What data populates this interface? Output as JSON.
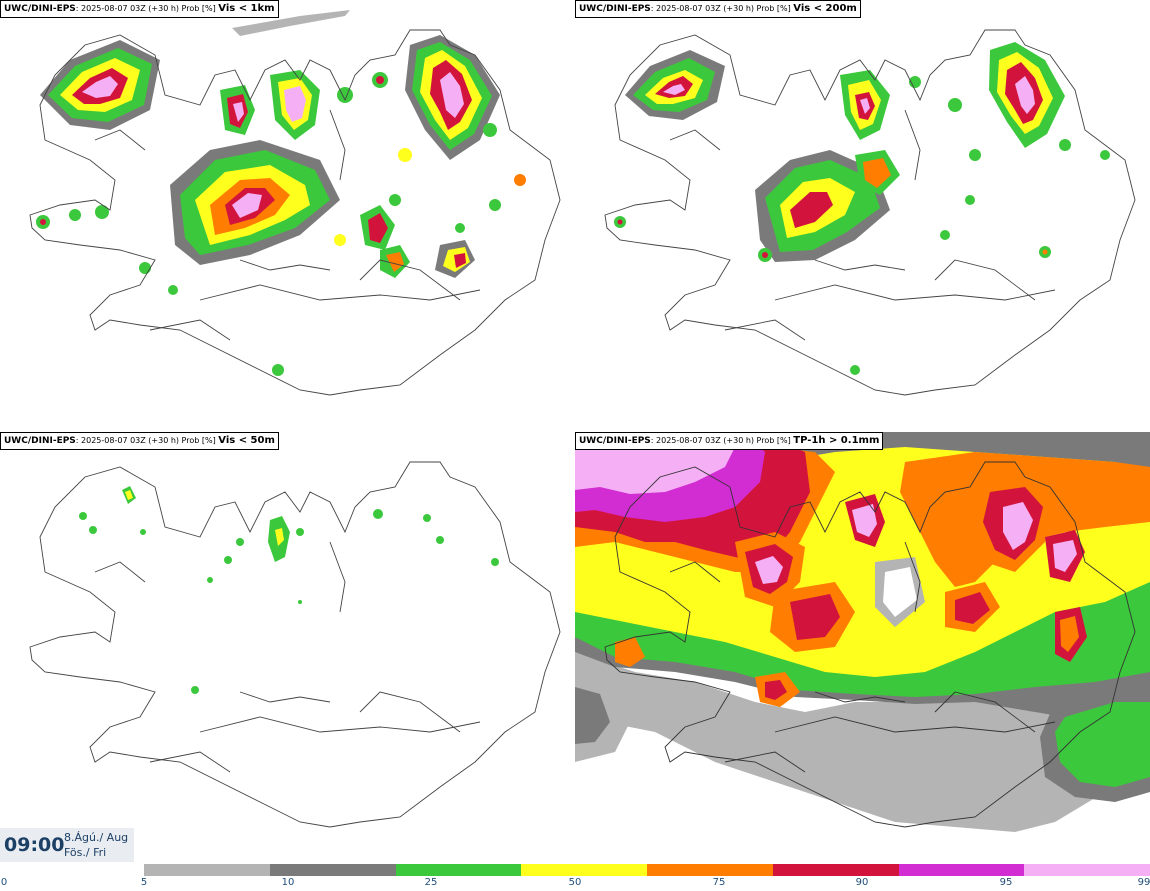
{
  "panels": [
    {
      "source": "UWC/DINI-EPS",
      "info": ": 2025-08-07 03Z (+30 h) Prob [%] ",
      "variable": "Vis < 1km"
    },
    {
      "source": "UWC/DINI-EPS",
      "info": ": 2025-08-07 03Z (+30 h) Prob [%] ",
      "variable": "Vis < 200m"
    },
    {
      "source": "UWC/DINI-EPS",
      "info": ": 2025-08-07 03Z (+30 h) Prob [%] ",
      "variable": "Vis < 50m"
    },
    {
      "source": "UWC/DINI-EPS",
      "info": ": 2025-08-07 03Z (+30 h) Prob [%] ",
      "variable": "TP-1h > 0.1mm"
    }
  ],
  "valid_time": {
    "time": "09:00",
    "date_line": "8.Ágú./ Aug",
    "day_line": "Fös./ Fri"
  },
  "colorbar": {
    "tick_labels": [
      "0",
      "5",
      "10",
      "25",
      "50",
      "75",
      "90",
      "95",
      "99"
    ],
    "colors": [
      "#b4b4b4",
      "#7a7a7a",
      "#3cc83c",
      "#ffff1e",
      "#ff7d00",
      "#d2143c",
      "#d22dd2",
      "#f5aff5"
    ]
  }
}
